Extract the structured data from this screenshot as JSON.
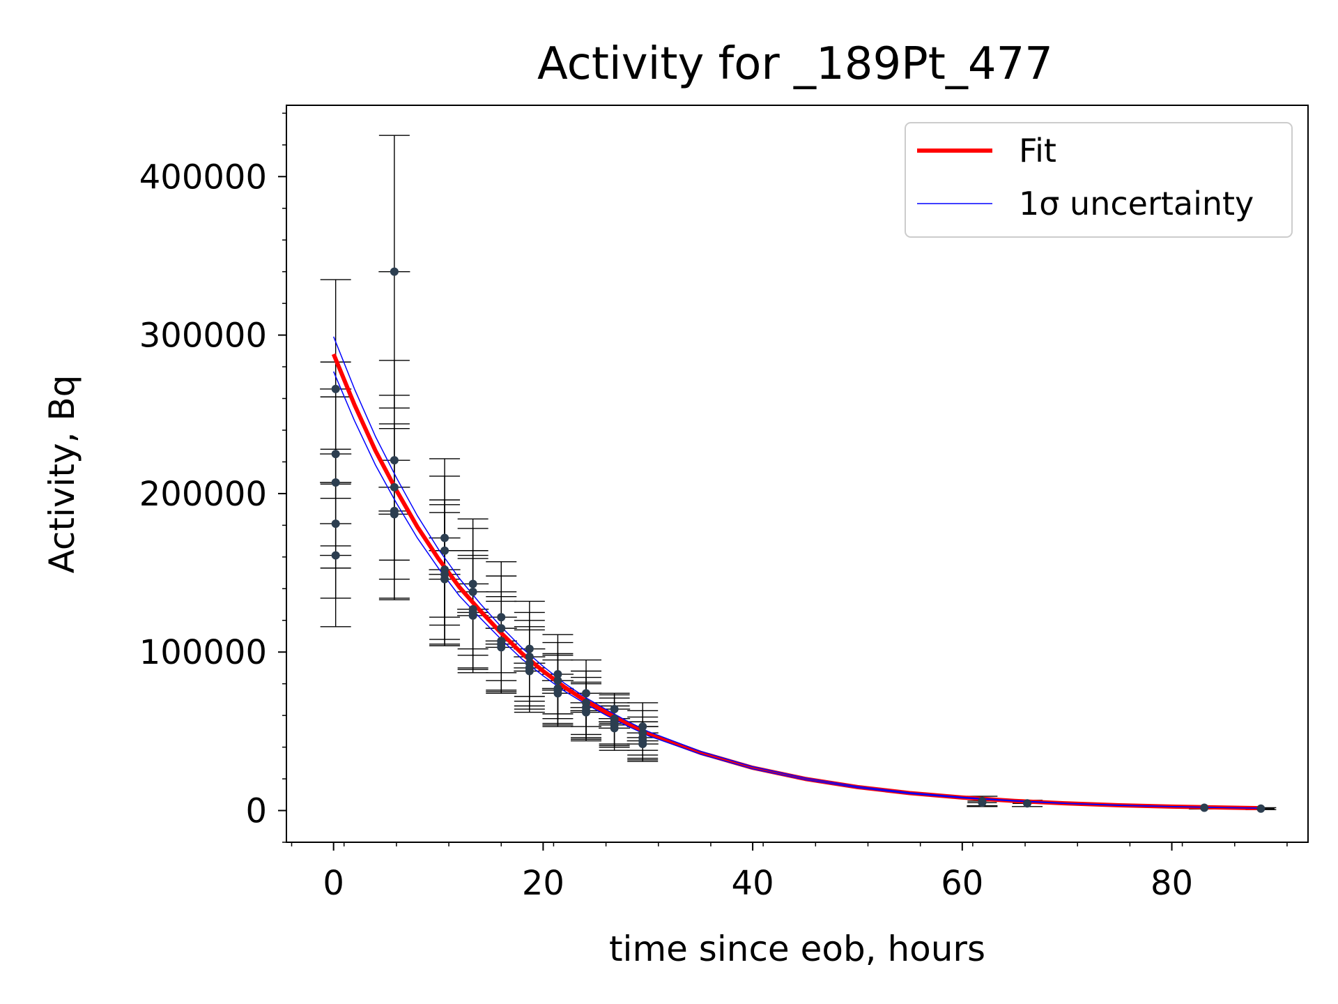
{
  "chart_data": {
    "type": "scatter",
    "title": "Activity for _189Pt_477",
    "xlabel": "time since eob, hours",
    "ylabel": "Activity, Bq",
    "xlim": [
      -4.5,
      93.0
    ],
    "ylim": [
      -20000,
      445000
    ],
    "xticks": [
      0,
      20,
      40,
      60,
      80
    ],
    "xtick_labels": [
      "0",
      "20",
      "40",
      "60",
      "80"
    ],
    "yticks": [
      0,
      100000,
      200000,
      300000,
      400000
    ],
    "ytick_labels": [
      "0",
      "100000",
      "200000",
      "300000",
      "400000"
    ],
    "minor_ticks": true,
    "grid": false,
    "legend": {
      "position": "top-right",
      "entries": [
        {
          "label": "Fit",
          "color": "#ff0000",
          "style": "thick-line"
        },
        {
          "label": "1σ uncertainty",
          "color": "#0000ff",
          "style": "thin-line"
        }
      ]
    },
    "series": [
      {
        "name": "Fit",
        "color": "#ff0000",
        "x": [
          0,
          2,
          4,
          6,
          8,
          10,
          12,
          14,
          16,
          18,
          20,
          22,
          24,
          26,
          28,
          30,
          35,
          40,
          45,
          50,
          55,
          60,
          65,
          70,
          75,
          80,
          85,
          88.5
        ],
        "y": [
          288000,
          256000,
          227000,
          202000,
          179000,
          159000,
          141000,
          126000,
          112000,
          99000,
          88000,
          78000,
          69500,
          62000,
          55000,
          48600,
          36500,
          27000,
          20000,
          14800,
          11000,
          8200,
          6100,
          4500,
          3300,
          2500,
          1850,
          1500
        ]
      },
      {
        "name": "1σ uncertainty",
        "color": "#0000ff",
        "x": [
          0,
          2,
          4,
          6,
          8,
          10,
          12,
          14,
          16,
          18,
          20,
          22,
          24,
          26,
          28,
          30,
          35,
          40,
          45,
          50,
          55,
          60,
          65,
          70,
          75,
          80,
          85,
          88.5
        ],
        "y": [
          299000,
          266000,
          236000,
          210000,
          186000,
          165000,
          146500,
          130500,
          116000,
          102500,
          91000,
          80500,
          71500,
          63800,
          56500,
          49900,
          37400,
          27700,
          20500,
          15200,
          11300,
          8400,
          6250,
          4600,
          3400,
          2550,
          1900,
          1550
        ]
      },
      {
        "name": "1σ uncertainty",
        "color": "#0000ff",
        "x": [
          0,
          2,
          4,
          6,
          8,
          10,
          12,
          14,
          16,
          18,
          20,
          22,
          24,
          26,
          28,
          30,
          35,
          40,
          45,
          50,
          55,
          60,
          65,
          70,
          75,
          80,
          85,
          88.5
        ],
        "y": [
          277000,
          246000,
          218000,
          194000,
          172000,
          153000,
          135500,
          121500,
          108000,
          95500,
          85000,
          75500,
          67500,
          60200,
          53500,
          47300,
          35600,
          26300,
          19500,
          14400,
          10700,
          8000,
          5950,
          4400,
          3200,
          2450,
          1800,
          1450
        ]
      }
    ],
    "points": {
      "color": "#2c3e50",
      "x": [
        0.2,
        0.2,
        0.2,
        0.2,
        0.2,
        5.8,
        5.8,
        5.8,
        5.8,
        5.8,
        10.6,
        10.6,
        10.6,
        10.6,
        10.6,
        13.3,
        13.3,
        13.3,
        13.3,
        13.3,
        16.0,
        16.0,
        16.0,
        16.0,
        16.0,
        18.7,
        18.7,
        18.7,
        18.7,
        18.7,
        21.4,
        21.4,
        21.4,
        21.4,
        21.4,
        24.1,
        24.1,
        24.1,
        24.1,
        24.1,
        26.8,
        26.8,
        26.8,
        26.8,
        26.8,
        29.5,
        29.5,
        29.5,
        29.5,
        29.5,
        61.9,
        61.9,
        66.2,
        83.1,
        88.5
      ],
      "y": [
        266000,
        225000,
        207000,
        181000,
        161000,
        340000,
        221000,
        204000,
        189000,
        187000,
        172000,
        164000,
        152000,
        149000,
        146000,
        143000,
        138000,
        127000,
        125000,
        123000,
        122000,
        115000,
        107000,
        105000,
        103000,
        102000,
        97000,
        93000,
        90000,
        88000,
        86000,
        82000,
        77000,
        76000,
        74000,
        74000,
        68000,
        65000,
        63000,
        62000,
        64000,
        58000,
        56000,
        54000,
        52000,
        53000,
        49000,
        46000,
        44000,
        42000,
        6000,
        5000,
        4500,
        1800,
        1200
      ],
      "yerr": [
        69000,
        58000,
        54000,
        47000,
        45000,
        86000,
        63000,
        58000,
        55000,
        54000,
        50000,
        47000,
        44000,
        44000,
        42000,
        41000,
        40000,
        37000,
        36000,
        36000,
        35000,
        33000,
        31000,
        30000,
        29000,
        30000,
        28000,
        27000,
        26000,
        26000,
        25000,
        24000,
        22000,
        22000,
        21000,
        21000,
        20000,
        19000,
        18000,
        18000,
        9000,
        16000,
        15000,
        14000,
        14000,
        15000,
        14000,
        13000,
        12000,
        11000,
        3000,
        2500,
        2000,
        800,
        600
      ],
      "xerr": [
        1.5,
        1.5,
        1.5,
        1.5,
        1.5,
        1.5,
        1.5,
        1.5,
        1.5,
        1.5,
        1.5,
        1.5,
        1.5,
        1.5,
        1.5,
        1.5,
        1.5,
        1.5,
        1.5,
        1.5,
        1.5,
        1.5,
        1.5,
        1.5,
        1.5,
        1.5,
        1.5,
        1.5,
        1.5,
        1.5,
        1.5,
        1.5,
        1.5,
        1.5,
        1.5,
        1.5,
        1.5,
        1.5,
        1.5,
        1.5,
        1.5,
        1.5,
        1.5,
        1.5,
        1.5,
        1.5,
        1.5,
        1.5,
        1.5,
        1.5,
        1.4,
        1.4,
        1.4,
        1.3,
        1.3
      ]
    }
  }
}
